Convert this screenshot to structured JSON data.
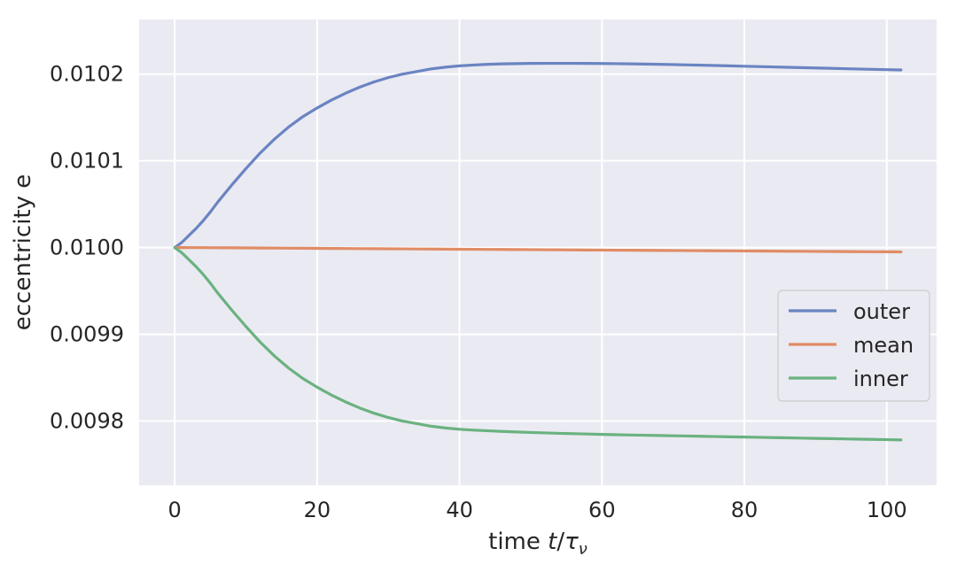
{
  "chart_data": {
    "type": "line",
    "title": "",
    "xlabel": "time t/τ_ν",
    "ylabel": "eccentricity e",
    "xlim": [
      -5,
      107
    ],
    "ylim": [
      0.009726,
      0.010263
    ],
    "x_ticks": [
      0,
      20,
      40,
      60,
      80,
      100
    ],
    "x_tick_labels": [
      "0",
      "20",
      "40",
      "60",
      "80",
      "100"
    ],
    "y_ticks": [
      0.0098,
      0.0099,
      0.01,
      0.0101,
      0.0102
    ],
    "y_tick_labels": [
      "0.0098",
      "0.0099",
      "0.0100",
      "0.0101",
      "0.0102"
    ],
    "grid": true,
    "legend_position": "center-right",
    "x": [
      0,
      1,
      2,
      3,
      4,
      5,
      6,
      7,
      8,
      10,
      12,
      14,
      16,
      18,
      20,
      22,
      24,
      26,
      28,
      30,
      32,
      34,
      36,
      38,
      40,
      42,
      44,
      46,
      48,
      50,
      52,
      54,
      56,
      58,
      60,
      62,
      64,
      66,
      68,
      70,
      72,
      74,
      76,
      78,
      80,
      82,
      84,
      86,
      88,
      90,
      92,
      94,
      96,
      98,
      100,
      102
    ],
    "series": [
      {
        "name": "outer",
        "color": "#6a84c2",
        "values": [
          0.01,
          0.010006,
          0.010014,
          0.010022,
          0.010031,
          0.010041,
          0.010052,
          0.010062,
          0.010072,
          0.010091,
          0.010109,
          0.010125,
          0.010139,
          0.010151,
          0.010161,
          0.01017,
          0.010178,
          0.010185,
          0.010191,
          0.010196,
          0.0102,
          0.010203,
          0.010206,
          0.010208,
          0.0102095,
          0.0102105,
          0.0102113,
          0.0102118,
          0.0102121,
          0.0102123,
          0.0102124,
          0.0102124,
          0.0102124,
          0.0102123,
          0.0102122,
          0.010212,
          0.0102118,
          0.0102116,
          0.0102113,
          0.010211,
          0.0102106,
          0.0102103,
          0.0102099,
          0.0102095,
          0.0102091,
          0.0102087,
          0.0102083,
          0.0102079,
          0.0102075,
          0.0102071,
          0.0102067,
          0.0102063,
          0.0102059,
          0.0102055,
          0.0102051,
          0.0102048
        ]
      },
      {
        "name": "mean",
        "color": "#e08c65",
        "values": [
          0.01,
          0.01,
          0.0099999,
          0.0099999,
          0.0099999,
          0.0099998,
          0.0099998,
          0.0099997,
          0.0099997,
          0.0099996,
          0.0099995,
          0.0099994,
          0.0099993,
          0.0099992,
          0.0099991,
          0.009999,
          0.0099989,
          0.0099988,
          0.0099987,
          0.0099986,
          0.0099985,
          0.0099984,
          0.0099983,
          0.0099982,
          0.0099981,
          0.009998,
          0.0099979,
          0.0099978,
          0.0099977,
          0.0099976,
          0.0099975,
          0.0099974,
          0.0099973,
          0.0099972,
          0.0099971,
          0.009997,
          0.0099969,
          0.0099968,
          0.0099967,
          0.0099966,
          0.0099965,
          0.0099964,
          0.0099963,
          0.0099962,
          0.0099961,
          0.009996,
          0.0099959,
          0.0099958,
          0.0099957,
          0.0099956,
          0.0099955,
          0.0099954,
          0.0099953,
          0.0099952,
          0.0099951,
          0.009995
        ]
      },
      {
        "name": "inner",
        "color": "#6ab27f",
        "values": [
          0.01,
          0.009994,
          0.009986,
          0.009978,
          0.009969,
          0.009959,
          0.009948,
          0.009938,
          0.009928,
          0.009909,
          0.009891,
          0.009875,
          0.009861,
          0.009849,
          0.009839,
          0.00983,
          0.009822,
          0.009815,
          0.009809,
          0.009804,
          0.0098,
          0.009797,
          0.009794,
          0.009792,
          0.0097905,
          0.0097895,
          0.0097887,
          0.009788,
          0.0097874,
          0.0097868,
          0.0097863,
          0.0097858,
          0.0097854,
          0.009785,
          0.0097846,
          0.0097842,
          0.0097839,
          0.0097836,
          0.0097833,
          0.009783,
          0.0097827,
          0.0097824,
          0.0097821,
          0.0097818,
          0.0097815,
          0.0097812,
          0.0097809,
          0.0097806,
          0.0097803,
          0.00978,
          0.0097797,
          0.0097794,
          0.0097791,
          0.0097788,
          0.0097785,
          0.0097782
        ]
      }
    ]
  },
  "colors": {
    "plot_background": "#eaeaf2",
    "grid": "#ffffff",
    "text": "#262626"
  }
}
